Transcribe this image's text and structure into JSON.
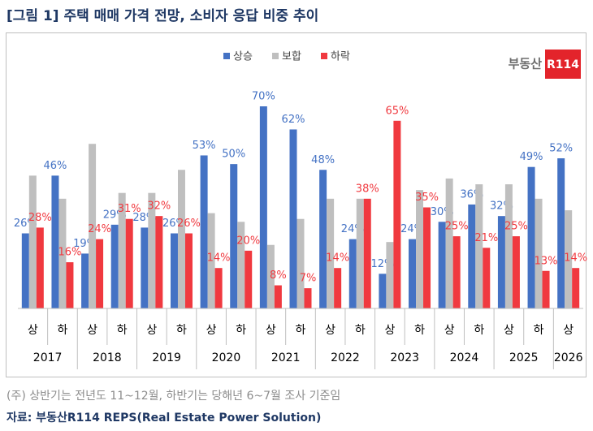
{
  "chart_data": {
    "type": "bar",
    "title": "[그림 1] 주택 매매 가격 전망, 소비자 응답 비중 추이",
    "categories": [
      "상",
      "하",
      "상",
      "하",
      "상",
      "하",
      "상",
      "하",
      "상",
      "하",
      "상",
      "하",
      "상",
      "하",
      "상",
      "하",
      "상",
      "하",
      "상"
    ],
    "years": [
      "2017",
      "2018",
      "2019",
      "2020",
      "2021",
      "2022",
      "2023",
      "2024",
      "2025",
      "2026"
    ],
    "series": [
      {
        "name": "상승",
        "color": "#4472c4",
        "values": [
          26,
          46,
          19,
          29,
          28,
          26,
          53,
          50,
          70,
          62,
          48,
          24,
          12,
          24,
          30,
          36,
          32,
          49,
          52
        ],
        "value_labels": [
          "26%",
          "46%",
          "19%",
          "29%",
          "28%",
          "26%",
          "53%",
          "50%",
          "70%",
          "62%",
          "48%",
          "24%",
          "12%",
          "24%",
          "30%",
          "36%",
          "32%",
          "49%",
          "52%"
        ]
      },
      {
        "name": "보합",
        "color": "#bfbfbf",
        "values": [
          46,
          38,
          57,
          40,
          40,
          48,
          33,
          30,
          22,
          31,
          38,
          38,
          23,
          41,
          45,
          43,
          43,
          38,
          34
        ]
      },
      {
        "name": "하락",
        "color": "#f0393f",
        "values": [
          28,
          16,
          24,
          31,
          32,
          26,
          14,
          20,
          8,
          7,
          14,
          38,
          65,
          35,
          25,
          21,
          25,
          13,
          14
        ],
        "value_labels": [
          "28%",
          "16%",
          "24%",
          "31%",
          "32%",
          "26%",
          "14%",
          "20%",
          "8%",
          "7%",
          "14%",
          "38%",
          "65%",
          "35%",
          "25%",
          "21%",
          "25%",
          "13%",
          "14%"
        ]
      }
    ],
    "logo": {
      "text": "부동산",
      "badge": "R114"
    },
    "note": "(주) 상반기는 전년도 11~12월, 하반기는 당해년 6~7월 조사 기준임",
    "source": "자료: 부동산R114 REPS(Real Estate Power Solution)"
  }
}
